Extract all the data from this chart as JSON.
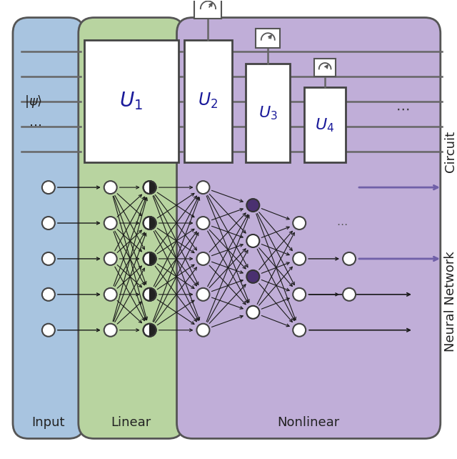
{
  "bg_color": "#ffffff",
  "input_bg": "#a8c4e0",
  "linear_bg": "#b8d4a0",
  "nonlinear_bg": "#c0aed8",
  "input_label": "Input",
  "linear_label": "Linear",
  "nonlinear_label": "Nonlinear",
  "circuit_label": "Circuit",
  "nn_label": "Neural Network",
  "node_color_white": "#ffffff",
  "node_color_purple": "#4a3070",
  "arrow_color_black": "#1a1a1a",
  "arrow_color_purple": "#7060a8",
  "line_color": "#555555",
  "box_edge_color": "#444444",
  "wire_color": "#666666",
  "panel_edge": "#555555",
  "meas_color": "#555555"
}
